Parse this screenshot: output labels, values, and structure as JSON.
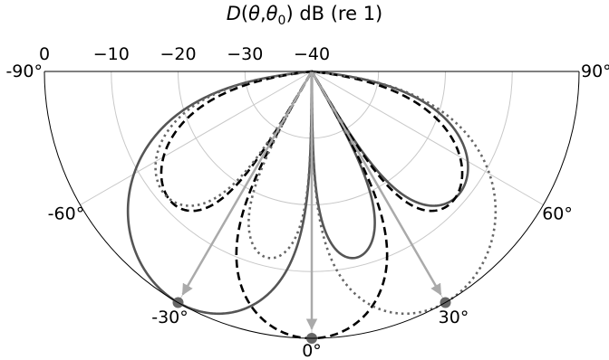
{
  "chart_data": {
    "type": "polar",
    "title": {
      "italic_D": "D",
      "paren_open": "(",
      "theta": "θ",
      "comma": ",",
      "theta0": "θ",
      "sub0": "0",
      "paren_close": ")",
      "suffix": " dB (re 1)"
    },
    "theta_range_deg": [
      -90,
      90
    ],
    "theta_zero_location": "bottom",
    "angular_ticks": [
      {
        "angle": -90,
        "label": "-90°"
      },
      {
        "angle": -60,
        "label": "-60°"
      },
      {
        "angle": -30,
        "label": "-30°"
      },
      {
        "angle": 0,
        "label": "0°"
      },
      {
        "angle": 30,
        "label": "30°"
      },
      {
        "angle": 60,
        "label": "60°"
      },
      {
        "angle": 90,
        "label": "90°"
      }
    ],
    "radial_ticks": [
      {
        "value": 0,
        "label": "0"
      },
      {
        "value": -10,
        "label": "−10"
      },
      {
        "value": -20,
        "label": "−20"
      },
      {
        "value": -30,
        "label": "−30"
      },
      {
        "value": -40,
        "label": "−40"
      }
    ],
    "rlim_db": [
      -40,
      0
    ],
    "grid": true,
    "series": [
      {
        "steer_deg": -30,
        "color": "#555555",
        "style": "solid"
      },
      {
        "steer_deg": 0,
        "color": "#000000",
        "style": "dashed"
      },
      {
        "steer_deg": 30,
        "color": "#666666",
        "style": "dotted"
      }
    ],
    "pattern_model": {
      "elements": 4,
      "spacing_wavelengths": 0.5
    },
    "steer_markers": [
      {
        "angle": -30,
        "value_db": 0
      },
      {
        "angle": 0,
        "value_db": 0
      },
      {
        "angle": 30,
        "value_db": 0
      }
    ],
    "arrows": [
      {
        "angle": -30,
        "value_db": 0
      },
      {
        "angle": 0,
        "value_db": 0
      },
      {
        "angle": 30,
        "value_db": 0
      }
    ],
    "colors": {
      "grid": "#c8c8c8",
      "arrow": "#aaaaaa",
      "marker": "#666666",
      "frame": "#000000"
    }
  }
}
